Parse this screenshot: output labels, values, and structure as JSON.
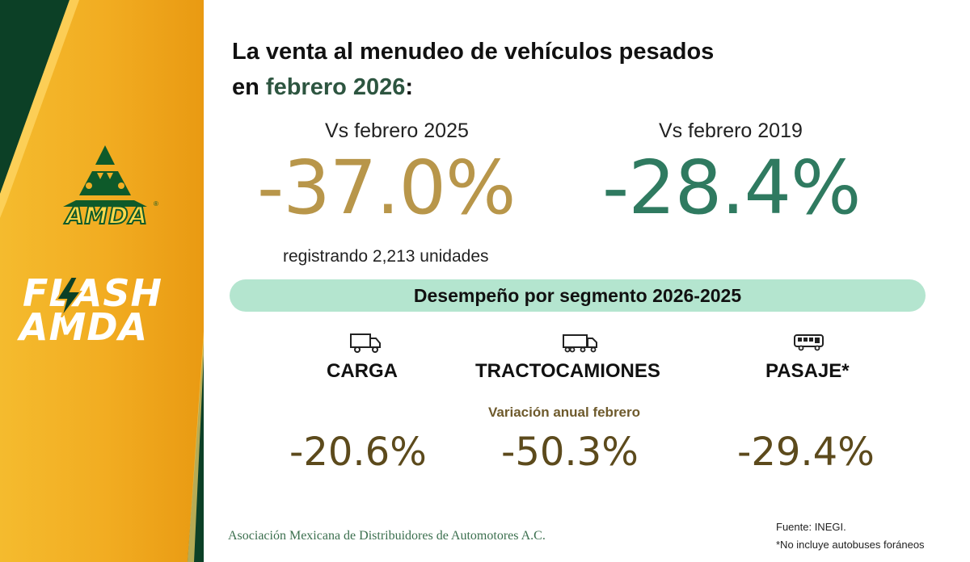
{
  "branding": {
    "logo_text": "AMDA",
    "registered_mark": "®",
    "flash_line1": "FLASH",
    "flash_line2": "AMDA",
    "colors": {
      "gold": "#f2ae24",
      "green": "#0c4026",
      "white": "#ffffff"
    }
  },
  "headline": {
    "line1": "La venta al menudeo de vehículos pesados",
    "line2_prefix": "en ",
    "line2_highlight": "febrero 2026",
    "line2_suffix": ":"
  },
  "comparisons": [
    {
      "label": "Vs febrero 2025",
      "value": "-37.0%",
      "color": "#b8964a"
    },
    {
      "label": "Vs febrero 2019",
      "value": "-28.4%",
      "color": "#2f7a60"
    }
  ],
  "units_note": "registrando 2,213 unidades",
  "segment_banner": "Desempeño por segmento 2026-2025",
  "variation_label": "Variación anual febrero",
  "segments": [
    {
      "name": "CARGA",
      "icon": "truck-icon",
      "value": "-20.6%"
    },
    {
      "name": "TRACTOCAMIONES",
      "icon": "tractor-trailer-icon",
      "value": "-50.3%"
    },
    {
      "name": "PASAJE*",
      "icon": "bus-icon",
      "value": "-29.4%"
    }
  ],
  "footer": {
    "association": "Asociación Mexicana de Distribuidores de Automotores A.C.",
    "source": "Fuente: INEGI.",
    "note": "*No incluye autobuses foráneos"
  }
}
